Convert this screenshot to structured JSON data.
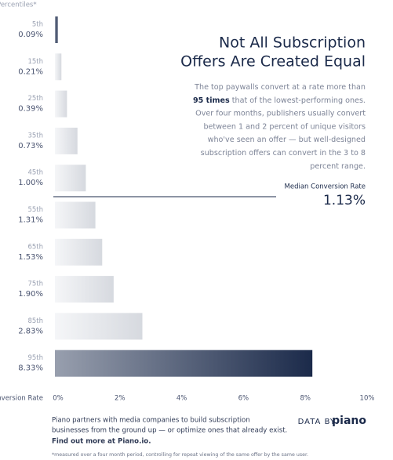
{
  "chart_data": {
    "type": "bar",
    "orientation": "horizontal",
    "title": [
      "Not All Subscription",
      "Offers Are Created Equal"
    ],
    "description": [
      [
        "The top paywalls convert at a rate more than"
      ],
      [
        "95 times",
        " that of the lowest-performing ones."
      ],
      [
        "Over four months, publishers usually convert"
      ],
      [
        "between 1 and 2 percent of unique visitors"
      ],
      [
        "who've seen an offer — but well-designed"
      ],
      [
        "subscription offers can convert in the 3 to 8"
      ],
      [
        "percent range."
      ]
    ],
    "category_axis_label": "Percentiles*",
    "value_axis_label": "Conversion Rate",
    "categories": [
      "5th",
      "15th",
      "25th",
      "35th",
      "45th",
      "55th",
      "65th",
      "75th",
      "85th",
      "95th"
    ],
    "values": [
      0.09,
      0.21,
      0.39,
      0.73,
      1.0,
      1.31,
      1.53,
      1.9,
      2.83,
      8.33
    ],
    "value_labels": [
      "0.09%",
      "0.21%",
      "0.39%",
      "0.73%",
      "1.00%",
      "1.31%",
      "1.53%",
      "1.90%",
      "2.83%",
      "8.33%"
    ],
    "colors": [
      "#1b2a4a",
      "#d6d9df",
      "#d6d9df",
      "#d6d9df",
      "#d6d9df",
      "#d6d9df",
      "#d6d9df",
      "#d6d9df",
      "#d6d9df",
      "#1b2a4a"
    ],
    "xlim": [
      0,
      10
    ],
    "xticks": [
      {
        "value": 0,
        "label": "0%"
      },
      {
        "value": 2,
        "label": "2%"
      },
      {
        "value": 4,
        "label": "4%"
      },
      {
        "value": 6,
        "label": "6%"
      },
      {
        "value": 8,
        "label": "8%"
      },
      {
        "value": 10,
        "label": "10%"
      }
    ],
    "median": {
      "label": "Median Conversion Rate",
      "value": 1.13,
      "value_label": "1.13%"
    },
    "footer": [
      "Piano partners with media companies to build subscription",
      "businesses from the ground up — or optimize ones that already exist.",
      "Find out more at Piano.io."
    ],
    "source": [
      "DATA BY",
      "piano"
    ],
    "footnote": "*measured over a four month period, controlling for repeat viewing of the same offer by the same user."
  }
}
